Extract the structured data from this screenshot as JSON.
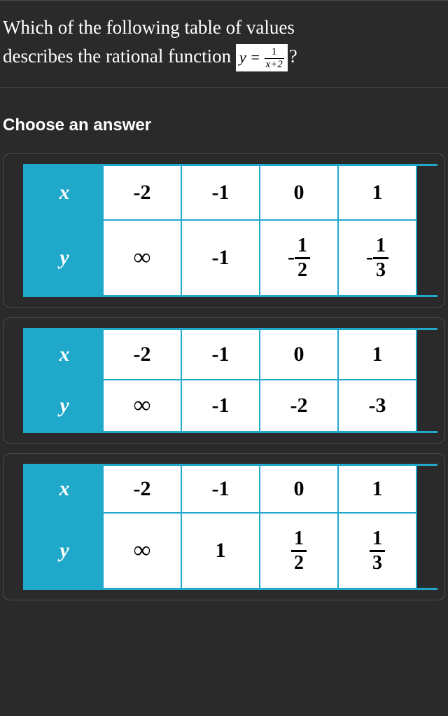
{
  "question": {
    "line1": "Which of the following table of values",
    "line2_pre": "describes the rational function ",
    "eq_lhs": "y = ",
    "eq_frac_num": "1",
    "eq_frac_den": "x+2",
    "line2_post": "?"
  },
  "choose_label": "Choose an answer",
  "colors": {
    "background": "#2a2a2a",
    "text": "#ffffff",
    "table_accent": "#1fa8c9",
    "cell_bg": "#ffffff",
    "cell_text": "#000000",
    "border": "#4a4a4a"
  },
  "options": [
    {
      "row_height": "tall",
      "x_label": "x",
      "y_label": "y",
      "x_values": [
        "-2",
        "-1",
        "0",
        "1"
      ],
      "y_values": [
        {
          "type": "inf",
          "text": "∞"
        },
        {
          "type": "plain",
          "text": "-1"
        },
        {
          "type": "negfrac",
          "num": "1",
          "den": "2"
        },
        {
          "type": "negfrac",
          "num": "1",
          "den": "3"
        }
      ]
    },
    {
      "row_height": "short",
      "x_label": "x",
      "y_label": "y",
      "x_values": [
        "-2",
        "-1",
        "0",
        "1"
      ],
      "y_values": [
        {
          "type": "inf",
          "text": "∞"
        },
        {
          "type": "plain",
          "text": "-1"
        },
        {
          "type": "plain",
          "text": "-2"
        },
        {
          "type": "plain",
          "text": "-3"
        }
      ]
    },
    {
      "row_height": "mixed",
      "x_label": "x",
      "y_label": "y",
      "x_values": [
        "-2",
        "-1",
        "0",
        "1"
      ],
      "y_values": [
        {
          "type": "inf",
          "text": "∞"
        },
        {
          "type": "plain",
          "text": "1"
        },
        {
          "type": "frac",
          "num": "1",
          "den": "2"
        },
        {
          "type": "frac",
          "num": "1",
          "den": "3"
        }
      ]
    }
  ]
}
